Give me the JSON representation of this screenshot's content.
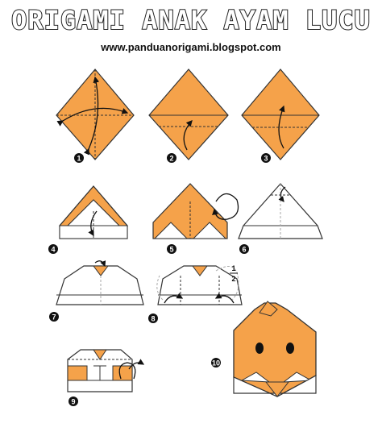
{
  "title": "ORIGAMI ANAK AYAM LUCU",
  "website": "www.panduanorigami.blogspot.com",
  "colors": {
    "paper_orange": "#F5A24A",
    "outline": "#333333",
    "white": "#FFFFFF"
  },
  "steps": [
    {
      "label": "1"
    },
    {
      "label": "2"
    },
    {
      "label": "3"
    },
    {
      "label": "4"
    },
    {
      "label": "5"
    },
    {
      "label": "6"
    },
    {
      "label": "7"
    },
    {
      "label": "8"
    },
    {
      "label": "9"
    },
    {
      "label": "10"
    }
  ],
  "fraction_note": {
    "numerator": "1",
    "denominator": "2"
  }
}
